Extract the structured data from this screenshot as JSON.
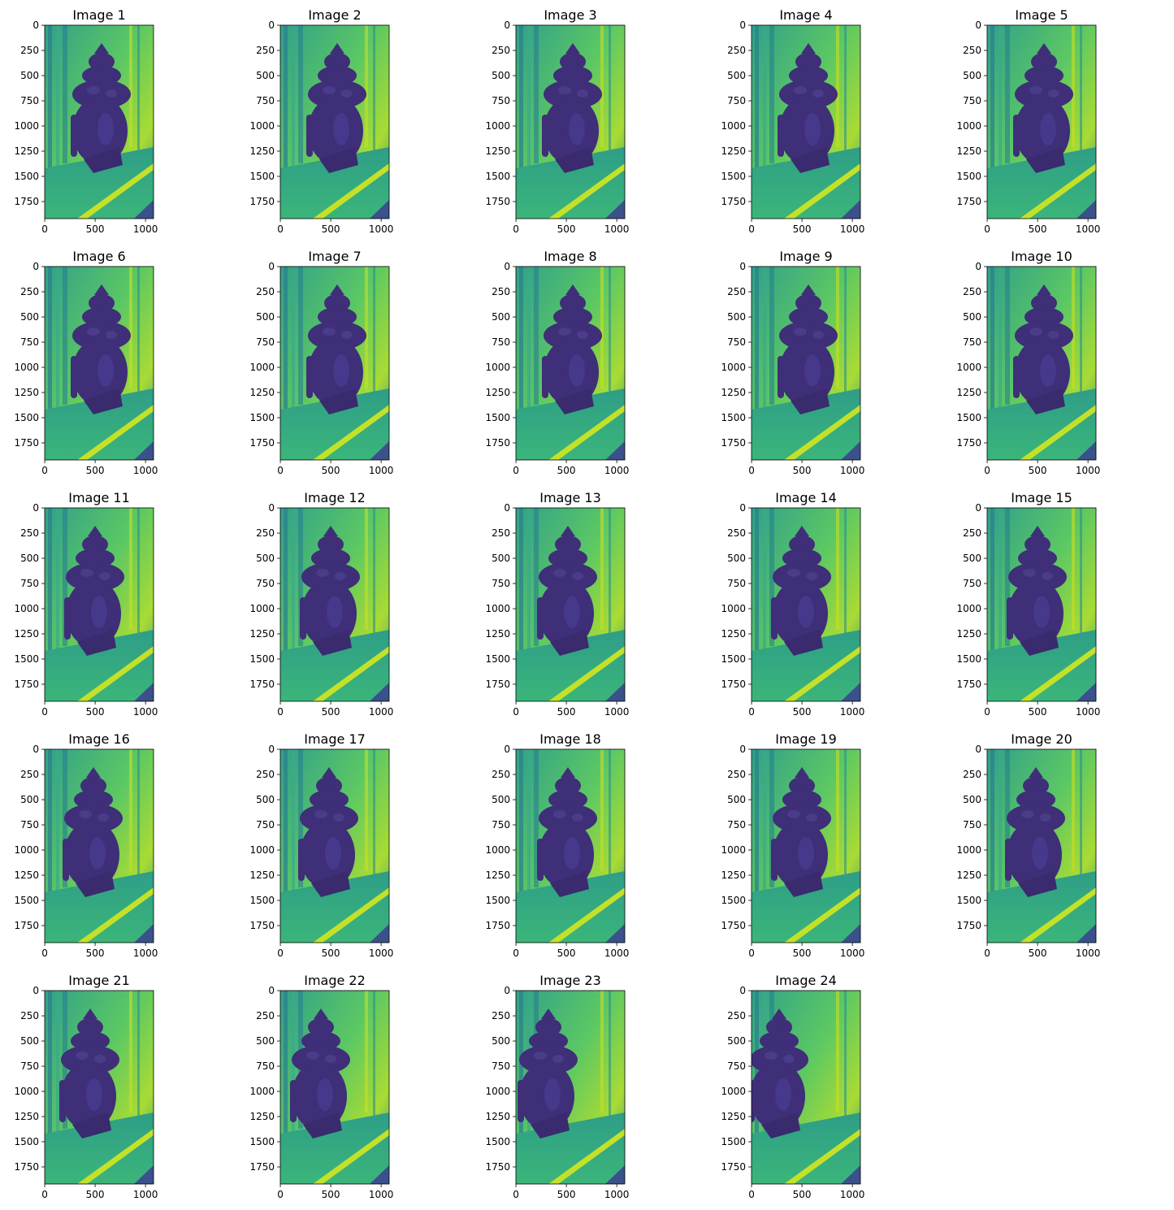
{
  "chart_data": [
    {
      "type": "image",
      "title": "Image 1",
      "xlim": [
        -0.5,
        1079.5
      ],
      "ylim": [
        1919.5,
        -0.5
      ],
      "xticks": [
        0,
        500,
        1000
      ],
      "yticks": [
        0,
        250,
        500,
        750,
        1000,
        1250,
        1500,
        1750
      ]
    },
    {
      "type": "image",
      "title": "Image 2",
      "xlim": [
        -0.5,
        1079.5
      ],
      "ylim": [
        1919.5,
        -0.5
      ],
      "xticks": [
        0,
        500,
        1000
      ],
      "yticks": [
        0,
        250,
        500,
        750,
        1000,
        1250,
        1500,
        1750
      ]
    },
    {
      "type": "image",
      "title": "Image 3",
      "xlim": [
        -0.5,
        1079.5
      ],
      "ylim": [
        1919.5,
        -0.5
      ],
      "xticks": [
        0,
        500,
        1000
      ],
      "yticks": [
        0,
        250,
        500,
        750,
        1000,
        1250,
        1500,
        1750
      ]
    },
    {
      "type": "image",
      "title": "Image 4",
      "xlim": [
        -0.5,
        1079.5
      ],
      "ylim": [
        1919.5,
        -0.5
      ],
      "xticks": [
        0,
        500,
        1000
      ],
      "yticks": [
        0,
        250,
        500,
        750,
        1000,
        1250,
        1500,
        1750
      ]
    },
    {
      "type": "image",
      "title": "Image 5",
      "xlim": [
        -0.5,
        1079.5
      ],
      "ylim": [
        1919.5,
        -0.5
      ],
      "xticks": [
        0,
        500,
        1000
      ],
      "yticks": [
        0,
        250,
        500,
        750,
        1000,
        1250,
        1500,
        1750
      ]
    },
    {
      "type": "image",
      "title": "Image 6",
      "xlim": [
        -0.5,
        1079.5
      ],
      "ylim": [
        1919.5,
        -0.5
      ],
      "xticks": [
        0,
        500,
        1000
      ],
      "yticks": [
        0,
        250,
        500,
        750,
        1000,
        1250,
        1500,
        1750
      ]
    },
    {
      "type": "image",
      "title": "Image 7",
      "xlim": [
        -0.5,
        1079.5
      ],
      "ylim": [
        1919.5,
        -0.5
      ],
      "xticks": [
        0,
        500,
        1000
      ],
      "yticks": [
        0,
        250,
        500,
        750,
        1000,
        1250,
        1500,
        1750
      ]
    },
    {
      "type": "image",
      "title": "Image 8",
      "xlim": [
        -0.5,
        1079.5
      ],
      "ylim": [
        1919.5,
        -0.5
      ],
      "xticks": [
        0,
        500,
        1000
      ],
      "yticks": [
        0,
        250,
        500,
        750,
        1000,
        1250,
        1500,
        1750
      ]
    },
    {
      "type": "image",
      "title": "Image 9",
      "xlim": [
        -0.5,
        1079.5
      ],
      "ylim": [
        1919.5,
        -0.5
      ],
      "xticks": [
        0,
        500,
        1000
      ],
      "yticks": [
        0,
        250,
        500,
        750,
        1000,
        1250,
        1500,
        1750
      ]
    },
    {
      "type": "image",
      "title": "Image 10",
      "xlim": [
        -0.5,
        1079.5
      ],
      "ylim": [
        1919.5,
        -0.5
      ],
      "xticks": [
        0,
        500,
        1000
      ],
      "yticks": [
        0,
        250,
        500,
        750,
        1000,
        1250,
        1500,
        1750
      ]
    },
    {
      "type": "image",
      "title": "Image 11",
      "xlim": [
        -0.5,
        1079.5
      ],
      "ylim": [
        1919.5,
        -0.5
      ],
      "xticks": [
        0,
        500,
        1000
      ],
      "yticks": [
        0,
        250,
        500,
        750,
        1000,
        1250,
        1500,
        1750
      ]
    },
    {
      "type": "image",
      "title": "Image 12",
      "xlim": [
        -0.5,
        1079.5
      ],
      "ylim": [
        1919.5,
        -0.5
      ],
      "xticks": [
        0,
        500,
        1000
      ],
      "yticks": [
        0,
        250,
        500,
        750,
        1000,
        1250,
        1500,
        1750
      ]
    },
    {
      "type": "image",
      "title": "Image 13",
      "xlim": [
        -0.5,
        1079.5
      ],
      "ylim": [
        1919.5,
        -0.5
      ],
      "xticks": [
        0,
        500,
        1000
      ],
      "yticks": [
        0,
        250,
        500,
        750,
        1000,
        1250,
        1500,
        1750
      ]
    },
    {
      "type": "image",
      "title": "Image 14",
      "xlim": [
        -0.5,
        1079.5
      ],
      "ylim": [
        1919.5,
        -0.5
      ],
      "xticks": [
        0,
        500,
        1000
      ],
      "yticks": [
        0,
        250,
        500,
        750,
        1000,
        1250,
        1500,
        1750
      ]
    },
    {
      "type": "image",
      "title": "Image 15",
      "xlim": [
        -0.5,
        1079.5
      ],
      "ylim": [
        1919.5,
        -0.5
      ],
      "xticks": [
        0,
        500,
        1000
      ],
      "yticks": [
        0,
        250,
        500,
        750,
        1000,
        1250,
        1500,
        1750
      ]
    },
    {
      "type": "image",
      "title": "Image 16",
      "xlim": [
        -0.5,
        1079.5
      ],
      "ylim": [
        1919.5,
        -0.5
      ],
      "xticks": [
        0,
        500,
        1000
      ],
      "yticks": [
        0,
        250,
        500,
        750,
        1000,
        1250,
        1500,
        1750
      ]
    },
    {
      "type": "image",
      "title": "Image 17",
      "xlim": [
        -0.5,
        1079.5
      ],
      "ylim": [
        1919.5,
        -0.5
      ],
      "xticks": [
        0,
        500,
        1000
      ],
      "yticks": [
        0,
        250,
        500,
        750,
        1000,
        1250,
        1500,
        1750
      ]
    },
    {
      "type": "image",
      "title": "Image 18",
      "xlim": [
        -0.5,
        1079.5
      ],
      "ylim": [
        1919.5,
        -0.5
      ],
      "xticks": [
        0,
        500,
        1000
      ],
      "yticks": [
        0,
        250,
        500,
        750,
        1000,
        1250,
        1500,
        1750
      ]
    },
    {
      "type": "image",
      "title": "Image 19",
      "xlim": [
        -0.5,
        1079.5
      ],
      "ylim": [
        1919.5,
        -0.5
      ],
      "xticks": [
        0,
        500,
        1000
      ],
      "yticks": [
        0,
        250,
        500,
        750,
        1000,
        1250,
        1500,
        1750
      ]
    },
    {
      "type": "image",
      "title": "Image 20",
      "xlim": [
        -0.5,
        1079.5
      ],
      "ylim": [
        1919.5,
        -0.5
      ],
      "xticks": [
        0,
        500,
        1000
      ],
      "yticks": [
        0,
        250,
        500,
        750,
        1000,
        1250,
        1500,
        1750
      ]
    },
    {
      "type": "image",
      "title": "Image 21",
      "xlim": [
        -0.5,
        1079.5
      ],
      "ylim": [
        1919.5,
        -0.5
      ],
      "xticks": [
        0,
        500,
        1000
      ],
      "yticks": [
        0,
        250,
        500,
        750,
        1000,
        1250,
        1500,
        1750
      ]
    },
    {
      "type": "image",
      "title": "Image 22",
      "xlim": [
        -0.5,
        1079.5
      ],
      "ylim": [
        1919.5,
        -0.5
      ],
      "xticks": [
        0,
        500,
        1000
      ],
      "yticks": [
        0,
        250,
        500,
        750,
        1000,
        1250,
        1500,
        1750
      ]
    },
    {
      "type": "image",
      "title": "Image 23",
      "xlim": [
        -0.5,
        1079.5
      ],
      "ylim": [
        1919.5,
        -0.5
      ],
      "xticks": [
        0,
        500,
        1000
      ],
      "yticks": [
        0,
        250,
        500,
        750,
        1000,
        1250,
        1500,
        1750
      ]
    },
    {
      "type": "image",
      "title": "Image 24",
      "xlim": [
        -0.5,
        1079.5
      ],
      "ylim": [
        1919.5,
        -0.5
      ],
      "xticks": [
        0,
        500,
        1000
      ],
      "yticks": [
        0,
        250,
        500,
        750,
        1000,
        1250,
        1500,
        1750
      ]
    }
  ]
}
